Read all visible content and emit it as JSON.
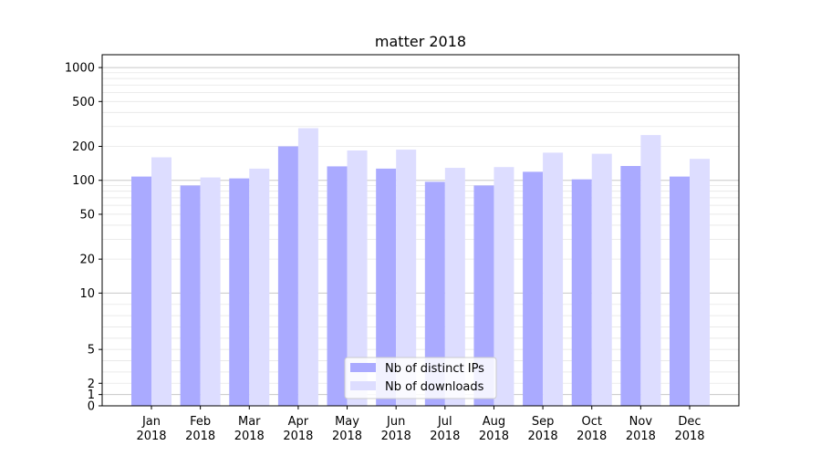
{
  "chart_data": {
    "type": "bar",
    "title": "matter 2018",
    "categories": [
      {
        "month": "Jan",
        "year": "2018"
      },
      {
        "month": "Feb",
        "year": "2018"
      },
      {
        "month": "Mar",
        "year": "2018"
      },
      {
        "month": "Apr",
        "year": "2018"
      },
      {
        "month": "May",
        "year": "2018"
      },
      {
        "month": "Jun",
        "year": "2018"
      },
      {
        "month": "Jul",
        "year": "2018"
      },
      {
        "month": "Aug",
        "year": "2018"
      },
      {
        "month": "Sep",
        "year": "2018"
      },
      {
        "month": "Oct",
        "year": "2018"
      },
      {
        "month": "Nov",
        "year": "2018"
      },
      {
        "month": "Dec",
        "year": "2018"
      }
    ],
    "series": [
      {
        "name": "Nb of distinct IPs",
        "color": "#aaaaff",
        "values": [
          108,
          90,
          104,
          200,
          133,
          127,
          97,
          90,
          119,
          102,
          134,
          108
        ]
      },
      {
        "name": "Nb of downloads",
        "color": "#ddddff",
        "values": [
          160,
          106,
          127,
          290,
          184,
          187,
          129,
          131,
          176,
          172,
          252,
          155
        ]
      }
    ],
    "y_scale": "symlog",
    "yticks": [
      {
        "value": 0,
        "label": "0"
      },
      {
        "value": 1,
        "label": "1"
      },
      {
        "value": 2,
        "label": "2"
      },
      {
        "value": 5,
        "label": "5"
      },
      {
        "value": 10,
        "label": "10"
      },
      {
        "value": 20,
        "label": "20"
      },
      {
        "value": 50,
        "label": "50"
      },
      {
        "value": 100,
        "label": "100"
      },
      {
        "value": 200,
        "label": "200"
      },
      {
        "value": 500,
        "label": "500"
      },
      {
        "value": 1000,
        "label": "1000"
      }
    ],
    "ylim": [
      0,
      1300
    ],
    "grid": true,
    "legend_position": "bottom-center"
  }
}
